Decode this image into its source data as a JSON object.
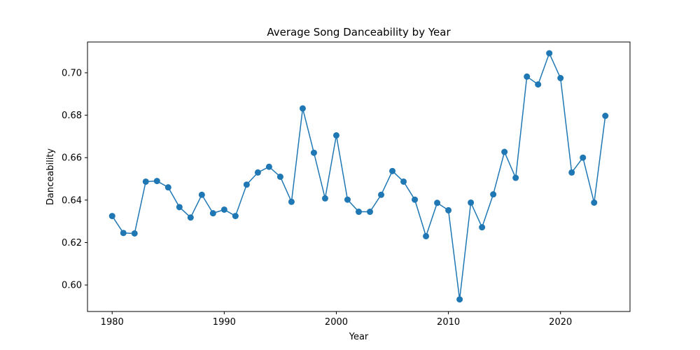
{
  "chart_data": {
    "type": "line",
    "title": "Average Song Danceability by Year",
    "xlabel": "Year",
    "ylabel": "Danceability",
    "xlim": [
      1977.8,
      2026.2
    ],
    "ylim": [
      0.5875,
      0.7145
    ],
    "x_ticks": [
      1980,
      1990,
      2000,
      2010,
      2020
    ],
    "y_ticks": [
      0.6,
      0.62,
      0.64,
      0.66,
      0.68,
      0.7
    ],
    "y_tick_labels": [
      "0.60",
      "0.62",
      "0.64",
      "0.66",
      "0.68",
      "0.70"
    ],
    "grid": false,
    "marker": "circle",
    "series": [
      {
        "color": "#1f77b4",
        "x": [
          1980,
          1981,
          1982,
          1983,
          1984,
          1985,
          1986,
          1987,
          1988,
          1989,
          1990,
          1991,
          1992,
          1993,
          1994,
          1995,
          1996,
          1997,
          1998,
          1999,
          2000,
          2001,
          2002,
          2003,
          2004,
          2005,
          2006,
          2007,
          2008,
          2009,
          2010,
          2011,
          2012,
          2013,
          2014,
          2015,
          2016,
          2017,
          2018,
          2019,
          2020,
          2021,
          2022,
          2023,
          2024
        ],
        "values": [
          0.6325,
          0.6245,
          0.6243,
          0.6487,
          0.649,
          0.646,
          0.6367,
          0.6318,
          0.6425,
          0.6338,
          0.6355,
          0.6325,
          0.6473,
          0.653,
          0.6557,
          0.651,
          0.6392,
          0.6832,
          0.6623,
          0.6408,
          0.6705,
          0.6402,
          0.6345,
          0.6345,
          0.6425,
          0.6537,
          0.6487,
          0.6402,
          0.623,
          0.6387,
          0.6352,
          0.5932,
          0.6388,
          0.6272,
          0.6427,
          0.6627,
          0.6505,
          0.6982,
          0.6945,
          0.7092,
          0.6975,
          0.653,
          0.66,
          0.6388,
          0.6797
        ]
      }
    ]
  }
}
